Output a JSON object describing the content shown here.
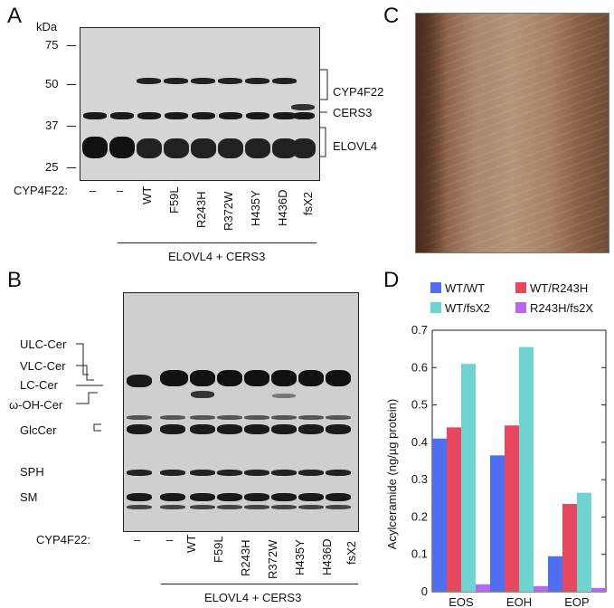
{
  "panels": {
    "a": {
      "letter": "A",
      "kda_label": "kDa",
      "markers": [
        "75",
        "50",
        "37",
        "25"
      ],
      "row_label": "CYP4F22:",
      "lanes": [
        "–",
        "–",
        "WT",
        "F59L",
        "R243H",
        "R372W",
        "H435Y",
        "H436D",
        "fsX2"
      ],
      "bands": [
        "CYP4F22",
        "CERS3",
        "ELOVL4"
      ],
      "underline": "ELOVL4 + CERS3"
    },
    "b": {
      "letter": "B",
      "lipids": [
        "ULC-Cer",
        "VLC-Cer",
        "LC-Cer",
        "ω-OH-Cer",
        "GlcCer",
        "SPH",
        "SM"
      ],
      "row_label": "CYP4F22:",
      "lanes": [
        "–",
        "–",
        "WT",
        "F59L",
        "R243H",
        "R372W",
        "H435Y",
        "H436D",
        "fsX2"
      ],
      "underline": "ELOVL4 + CERS3"
    },
    "c": {
      "letter": "C"
    },
    "d": {
      "letter": "D"
    }
  },
  "chart_data": {
    "type": "bar",
    "categories": [
      "EOS",
      "EOH",
      "EOP"
    ],
    "series": [
      {
        "name": "WT/WT",
        "color": "#4f6ff0",
        "values": [
          0.41,
          0.365,
          0.095
        ]
      },
      {
        "name": "WT/R243H",
        "color": "#e8485f",
        "values": [
          0.44,
          0.445,
          0.235
        ]
      },
      {
        "name": "WT/fsX2",
        "color": "#6fd3cf",
        "values": [
          0.61,
          0.655,
          0.265
        ]
      },
      {
        "name": "R243H/fs2X",
        "color": "#b36af0",
        "values": [
          0.02,
          0.015,
          0.01
        ]
      }
    ],
    "ylabel": "Acylceramide (ng/µg protein)",
    "xlabel": "",
    "ylim": [
      0,
      0.7
    ],
    "yticks": [
      "0",
      "0.1",
      "0.2",
      "0.3",
      "0.4",
      "0.5",
      "0.6",
      "0.7"
    ],
    "legend": "top",
    "grid": false
  }
}
